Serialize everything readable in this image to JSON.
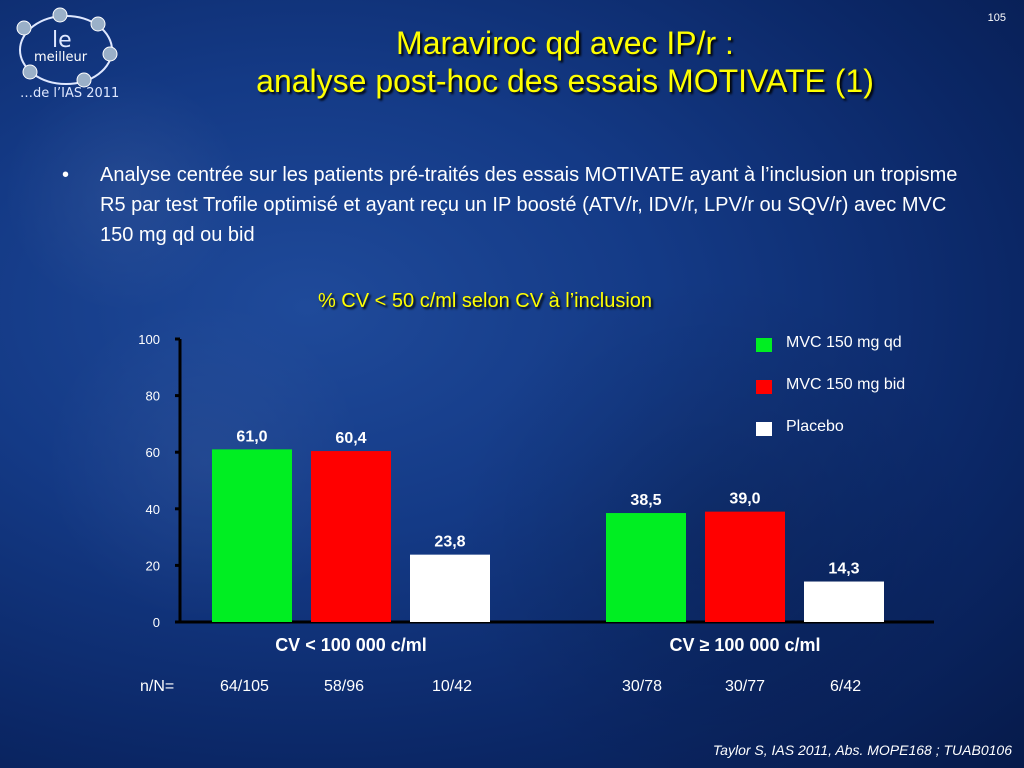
{
  "slide_number": "105",
  "logo": {
    "le": "le",
    "meilleur": "meilleur",
    "subtitle": "…de l’IAS 2011"
  },
  "title": {
    "line1": "Maraviroc qd avec IP/r :",
    "line2": "analyse post-hoc des essais MOTIVATE (1)"
  },
  "bullet": {
    "symbol": "•",
    "text": "Analyse centrée sur les patients pré-traités des essais MOTIVATE ayant à l’inclusion un tropisme R5 par test Trofile optimisé et ayant reçu un IP boosté (ATV/r, IDV/r, LPV/r ou SQV/r) avec MVC 150 mg qd ou bid"
  },
  "chart_data": {
    "type": "bar",
    "title": "% CV < 50 c/ml selon CV à l’inclusion",
    "categories": [
      "CV < 100 000 c/ml",
      "CV ≥ 100 000 c/ml"
    ],
    "series": [
      {
        "name": "MVC 150 mg qd",
        "color": "#00ee22",
        "values": [
          61.0,
          38.5
        ],
        "labels": [
          "61,0",
          "38,5"
        ]
      },
      {
        "name": "MVC 150 mg bid",
        "color": "#ff0000",
        "values": [
          60.4,
          39.0
        ],
        "labels": [
          "60,4",
          "39,0"
        ]
      },
      {
        "name": "Placebo",
        "color": "#ffffff",
        "values": [
          23.8,
          14.3
        ],
        "labels": [
          "23,8",
          "14,3"
        ]
      }
    ],
    "ylim": [
      0,
      100
    ],
    "yticks": [
      0,
      20,
      40,
      60,
      80,
      100
    ],
    "legend_position": "top-right",
    "grid": false
  },
  "n_prefix": "n/N=",
  "n_values": [
    "64/105",
    "58/96",
    "10/42",
    "30/78",
    "30/77",
    "6/42"
  ],
  "source": "Taylor S, IAS 2011, Abs. MOPE168 ; TUAB0106"
}
